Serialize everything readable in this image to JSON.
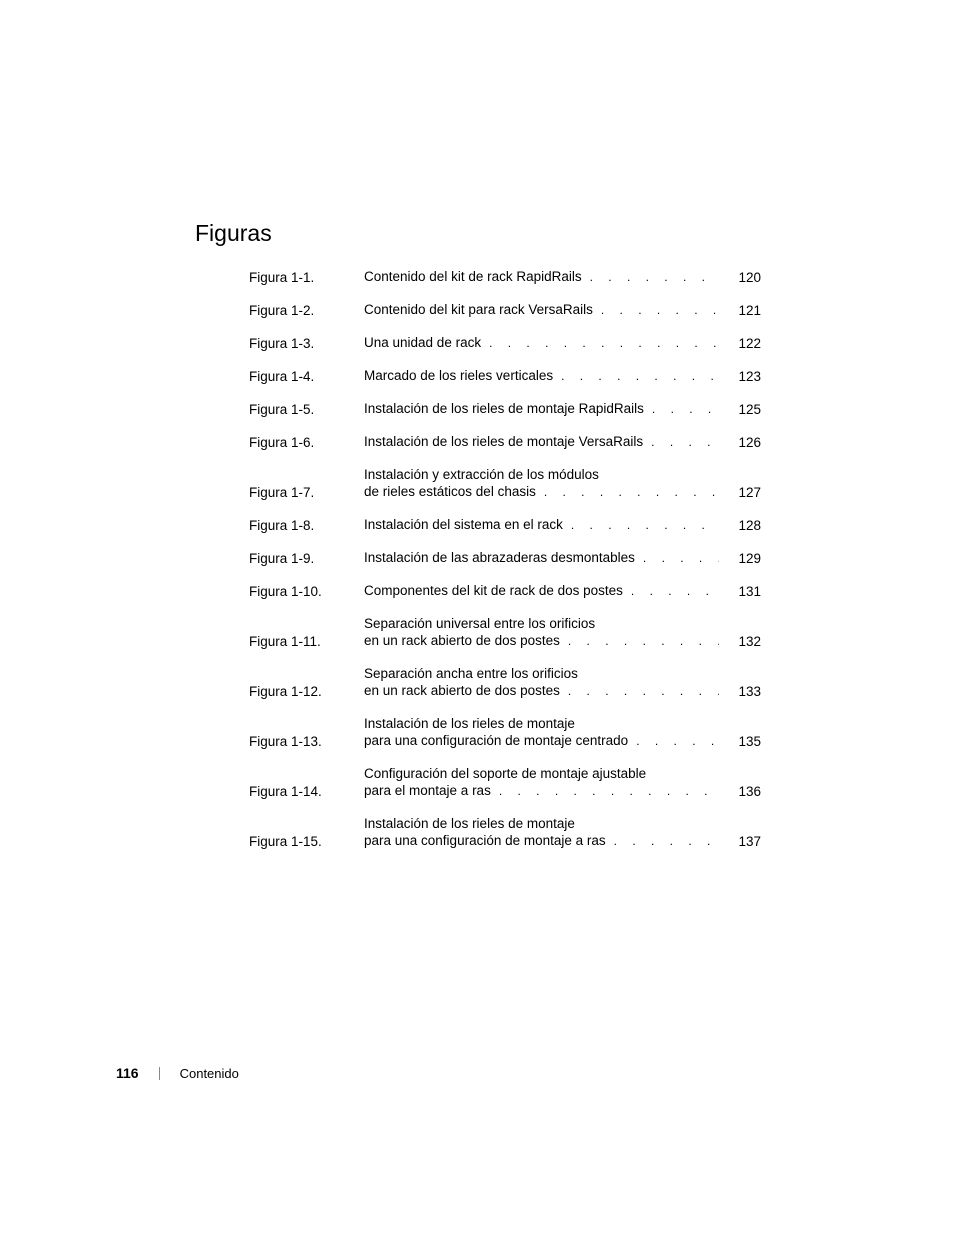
{
  "heading": "Figuras",
  "leader_char": ".",
  "entries": [
    {
      "label": "Figura 1-1.",
      "lines": [
        "Contenido del kit de rack RapidRails"
      ],
      "page": "120"
    },
    {
      "label": "Figura 1-2.",
      "lines": [
        "Contenido del kit para rack VersaRails"
      ],
      "page": "121"
    },
    {
      "label": "Figura 1-3.",
      "lines": [
        "Una unidad de rack"
      ],
      "page": "122"
    },
    {
      "label": "Figura 1-4.",
      "lines": [
        "Marcado de los rieles verticales"
      ],
      "page": "123"
    },
    {
      "label": "Figura 1-5.",
      "lines": [
        "Instalación de los rieles de montaje RapidRails"
      ],
      "page": "125"
    },
    {
      "label": "Figura 1-6.",
      "lines": [
        "Instalación de los rieles de montaje VersaRails"
      ],
      "page": "126"
    },
    {
      "label": "Figura 1-7.",
      "lines": [
        "Instalación y extracción de los módulos",
        "de rieles estáticos del chasis"
      ],
      "page": "127"
    },
    {
      "label": "Figura 1-8.",
      "lines": [
        "Instalación del sistema en el rack"
      ],
      "page": "128"
    },
    {
      "label": "Figura 1-9.",
      "lines": [
        "Instalación de las abrazaderas desmontables"
      ],
      "page": "129"
    },
    {
      "label": "Figura 1-10.",
      "lines": [
        "Componentes del kit de rack de dos postes"
      ],
      "page": "131"
    },
    {
      "label": "Figura 1-11.",
      "lines": [
        "Separación universal entre los orificios",
        "en un rack abierto de dos postes"
      ],
      "page": "132"
    },
    {
      "label": "Figura 1-12.",
      "lines": [
        "Separación ancha entre los orificios",
        "en un rack abierto de dos postes"
      ],
      "page": "133"
    },
    {
      "label": "Figura 1-13.",
      "lines": [
        "Instalación de los rieles de montaje",
        "para una configuración de montaje centrado"
      ],
      "page": "135"
    },
    {
      "label": "Figura 1-14.",
      "lines": [
        "Configuración del soporte de montaje ajustable",
        "para el montaje a ras"
      ],
      "page": "136"
    },
    {
      "label": "Figura 1-15.",
      "lines": [
        "Instalación de los rieles de montaje",
        "para una configuración de montaje a ras"
      ],
      "page": "137"
    }
  ],
  "footer": {
    "page_number": "116",
    "section": "Contenido"
  }
}
